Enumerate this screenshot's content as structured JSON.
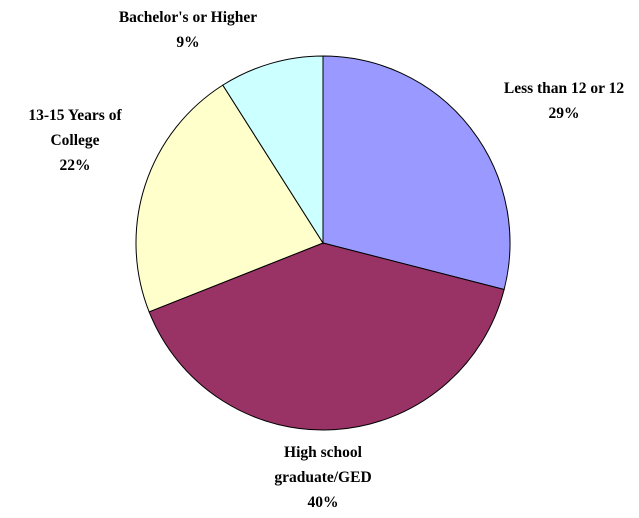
{
  "chart_data": {
    "type": "pie",
    "categories": [
      "Less than 12 or 12",
      "High school graduate/GED",
      "13-15 Years of College",
      "Bachelor's or Higher"
    ],
    "values": [
      29,
      40,
      22,
      9
    ],
    "value_labels": [
      "29%",
      "40%",
      "22%",
      "9%"
    ],
    "colors": [
      "#9999ff",
      "#993366",
      "#ffffcc",
      "#ccffff"
    ]
  }
}
